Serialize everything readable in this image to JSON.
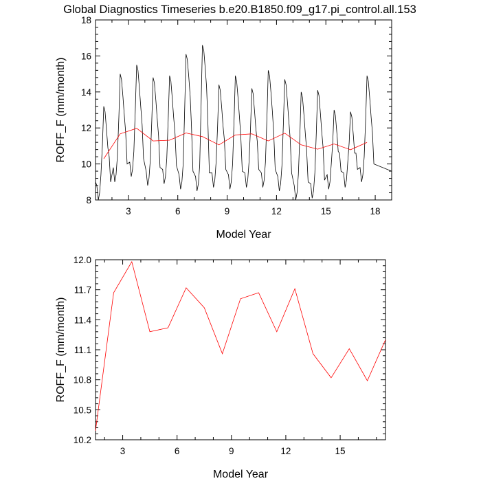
{
  "title": "Global Diagnostics Timeseries b.e20.B1850.f09_g17.pi_control.all.153",
  "colors": {
    "monthly": "#000000",
    "annual": "#ff0000",
    "axis": "#000000"
  },
  "chart_data": [
    {
      "type": "line",
      "xlabel": "Model Year",
      "ylabel": "ROFF_F (mm/month)",
      "xlim": [
        1,
        19
      ],
      "ylim": [
        8,
        18
      ],
      "xticks": [
        3,
        6,
        9,
        12,
        15,
        18
      ],
      "xtick_labels": [
        "3",
        "6",
        "9",
        "12",
        "15",
        "18"
      ],
      "yticks": [
        8,
        10,
        12,
        14,
        16,
        18
      ],
      "ytick_labels": [
        "8",
        "10",
        "12",
        "14",
        "16",
        "18"
      ],
      "series": [
        {
          "name": "monthly",
          "color": "#000000",
          "seasonal_peaks": [
            13.2,
            15.0,
            15.5,
            14.8,
            14.9,
            16.1,
            16.6,
            14.4,
            14.9,
            14.2,
            15.2,
            14.7,
            14.0,
            14.1,
            13.0,
            12.9,
            14.9
          ],
          "seasonal_troughs": [
            8.0,
            9.0,
            9.3,
            8.8,
            8.9,
            8.6,
            8.5,
            8.7,
            8.6,
            8.7,
            8.7,
            8.5,
            8.0,
            8.1,
            8.6,
            8.7,
            9.0
          ],
          "start_value": 9.0,
          "end_value": 9.6
        },
        {
          "name": "annual",
          "color": "#ff0000",
          "x": [
            1.5,
            2.5,
            3.5,
            4.5,
            5.5,
            6.5,
            7.5,
            8.5,
            9.5,
            10.5,
            11.5,
            12.5,
            13.5,
            14.5,
            15.5,
            16.5,
            17.5
          ],
          "values": [
            10.29,
            11.67,
            11.98,
            11.28,
            11.32,
            11.72,
            11.52,
            11.06,
            11.61,
            11.67,
            11.28,
            11.71,
            11.06,
            10.82,
            11.11,
            10.79,
            11.2
          ]
        }
      ]
    },
    {
      "type": "line",
      "xlabel": "Model Year",
      "ylabel": "ROFF_F (mm/month)",
      "xlim": [
        1.5,
        17.5
      ],
      "ylim": [
        10.2,
        12.0
      ],
      "xticks": [
        3,
        6,
        9,
        12,
        15
      ],
      "xtick_labels": [
        "3",
        "6",
        "9",
        "12",
        "15"
      ],
      "yticks": [
        10.2,
        10.5,
        10.8,
        11.1,
        11.4,
        11.7,
        12.0
      ],
      "ytick_labels": [
        "10.2",
        "10.5",
        "10.8",
        "11.1",
        "11.4",
        "11.7",
        "12.0"
      ],
      "series": [
        {
          "name": "annual",
          "color": "#ff0000",
          "x": [
            1.5,
            2.5,
            3.5,
            4.5,
            5.5,
            6.5,
            7.5,
            8.5,
            9.5,
            10.5,
            11.5,
            12.5,
            13.5,
            14.5,
            15.5,
            16.5,
            17.5
          ],
          "values": [
            10.29,
            11.67,
            11.98,
            11.28,
            11.32,
            11.72,
            11.52,
            11.06,
            11.61,
            11.67,
            11.28,
            11.71,
            11.06,
            10.82,
            11.11,
            10.79,
            11.2
          ]
        }
      ]
    }
  ]
}
